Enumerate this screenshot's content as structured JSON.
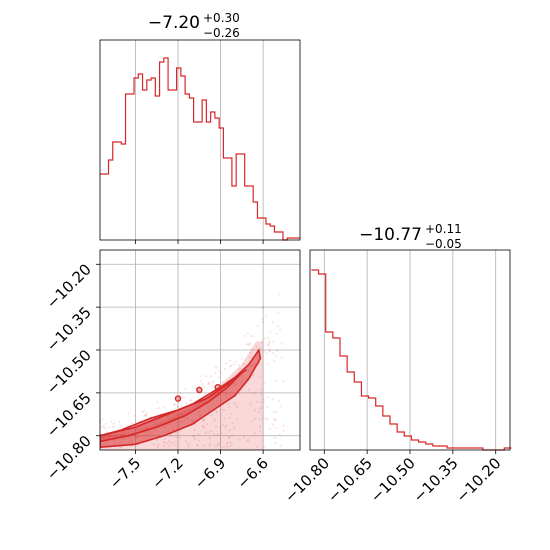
{
  "chart_data": [
    {
      "type": "histogram",
      "panel": "top-left",
      "title": {
        "value": "−7.20",
        "plus": "+0.30",
        "minus": "−0.26"
      },
      "xlim": [
        -7.75,
        -6.34
      ],
      "ylim": [
        0,
        1
      ],
      "grid": true,
      "xticks": [
        -7.5,
        -7.2,
        -6.9,
        -6.6
      ],
      "color": "#d62728",
      "bin_edges": [
        -7.75,
        -7.72,
        -7.69,
        -7.66,
        -7.63,
        -7.6,
        -7.57,
        -7.54,
        -7.51,
        -7.48,
        -7.45,
        -7.42,
        -7.39,
        -7.36,
        -7.33,
        -7.3,
        -7.27,
        -7.24,
        -7.21,
        -7.18,
        -7.15,
        -7.12,
        -7.09,
        -7.06,
        -7.03,
        -7.0,
        -6.97,
        -6.94,
        -6.91,
        -6.88,
        -6.85,
        -6.82,
        -6.79,
        -6.76,
        -6.73,
        -6.7,
        -6.67,
        -6.64,
        -6.61,
        -6.58,
        -6.55,
        -6.52,
        -6.49,
        -6.46,
        -6.43,
        -6.4,
        -6.37,
        -6.34
      ],
      "heights": [
        0.33,
        0.33,
        0.4,
        0.49,
        0.49,
        0.48,
        0.73,
        0.73,
        0.81,
        0.83,
        0.75,
        0.8,
        0.81,
        0.72,
        0.89,
        0.91,
        0.75,
        0.75,
        0.86,
        0.82,
        0.73,
        0.71,
        0.59,
        0.59,
        0.7,
        0.59,
        0.64,
        0.61,
        0.56,
        0.41,
        0.41,
        0.27,
        0.43,
        0.43,
        0.27,
        0.27,
        0.19,
        0.11,
        0.11,
        0.08,
        0.07,
        0.04,
        0.04,
        0.0,
        0.01,
        0.01,
        0.01
      ]
    },
    {
      "type": "histogram",
      "panel": "bottom-right",
      "title": {
        "value": "−10.77",
        "plus": "+0.11",
        "minus": "−0.05"
      },
      "xlim": [
        -10.85,
        -10.15
      ],
      "ylim": [
        0,
        1
      ],
      "grid": true,
      "xticks": [
        -10.8,
        -10.65,
        -10.5,
        -10.35,
        -10.2
      ],
      "color": "#d62728",
      "bin_edges": [
        -10.845,
        -10.82,
        -10.795,
        -10.77,
        -10.745,
        -10.72,
        -10.695,
        -10.67,
        -10.645,
        -10.62,
        -10.595,
        -10.57,
        -10.545,
        -10.52,
        -10.495,
        -10.47,
        -10.445,
        -10.42,
        -10.395,
        -10.37,
        -10.345,
        -10.32,
        -10.295,
        -10.27,
        -10.245,
        -10.22,
        -10.195,
        -10.17,
        -10.145
      ],
      "heights": [
        0.9,
        0.88,
        0.59,
        0.56,
        0.47,
        0.39,
        0.34,
        0.27,
        0.26,
        0.22,
        0.17,
        0.13,
        0.09,
        0.07,
        0.05,
        0.04,
        0.03,
        0.02,
        0.02,
        0.01,
        0.01,
        0.01,
        0.01,
        0.01,
        0.0,
        0.0,
        0.0,
        0.01
      ]
    },
    {
      "type": "contour",
      "panel": "bottom-left",
      "xlim": [
        -7.75,
        -6.34
      ],
      "ylim": [
        -10.85,
        -10.15
      ],
      "grid": true,
      "xticks": [
        -7.5,
        -7.2,
        -6.9,
        -6.6
      ],
      "yticks": [
        -10.2,
        -10.35,
        -10.5,
        -10.65,
        -10.8
      ],
      "color": "#d62728",
      "density_boundary": [
        [
          -7.75,
          -10.8
        ],
        [
          -7.5,
          -10.79
        ],
        [
          -7.3,
          -10.75
        ],
        [
          -7.1,
          -10.7
        ],
        [
          -6.9,
          -10.62
        ],
        [
          -6.75,
          -10.55
        ],
        [
          -6.65,
          -10.47
        ],
        [
          -6.6,
          -10.47
        ]
      ],
      "levels": [
        {
          "fill": 0.5,
          "points": [
            [
              -7.75,
              -10.84
            ],
            [
              -7.5,
              -10.83
            ],
            [
              -7.3,
              -10.8
            ],
            [
              -7.1,
              -10.76
            ],
            [
              -6.95,
              -10.71
            ],
            [
              -6.8,
              -10.66
            ],
            [
              -6.7,
              -10.6
            ],
            [
              -6.62,
              -10.53
            ],
            [
              -6.63,
              -10.5
            ],
            [
              -6.7,
              -10.55
            ],
            [
              -6.85,
              -10.62
            ],
            [
              -7.0,
              -10.67
            ],
            [
              -7.2,
              -10.71
            ],
            [
              -7.4,
              -10.74
            ],
            [
              -7.6,
              -10.78
            ],
            [
              -7.75,
              -10.8
            ]
          ]
        },
        {
          "fill": 0.3,
          "points": [
            [
              -7.75,
              -10.82
            ],
            [
              -7.55,
              -10.8
            ],
            [
              -7.35,
              -10.77
            ],
            [
              -7.15,
              -10.73
            ],
            [
              -6.98,
              -10.68
            ],
            [
              -6.85,
              -10.63
            ],
            [
              -6.75,
              -10.58
            ],
            [
              -6.72,
              -10.57
            ],
            [
              -6.9,
              -10.63
            ],
            [
              -7.1,
              -10.69
            ],
            [
              -7.3,
              -10.73
            ],
            [
              -7.5,
              -10.77
            ],
            [
              -7.75,
              -10.8
            ]
          ]
        }
      ]
    }
  ]
}
